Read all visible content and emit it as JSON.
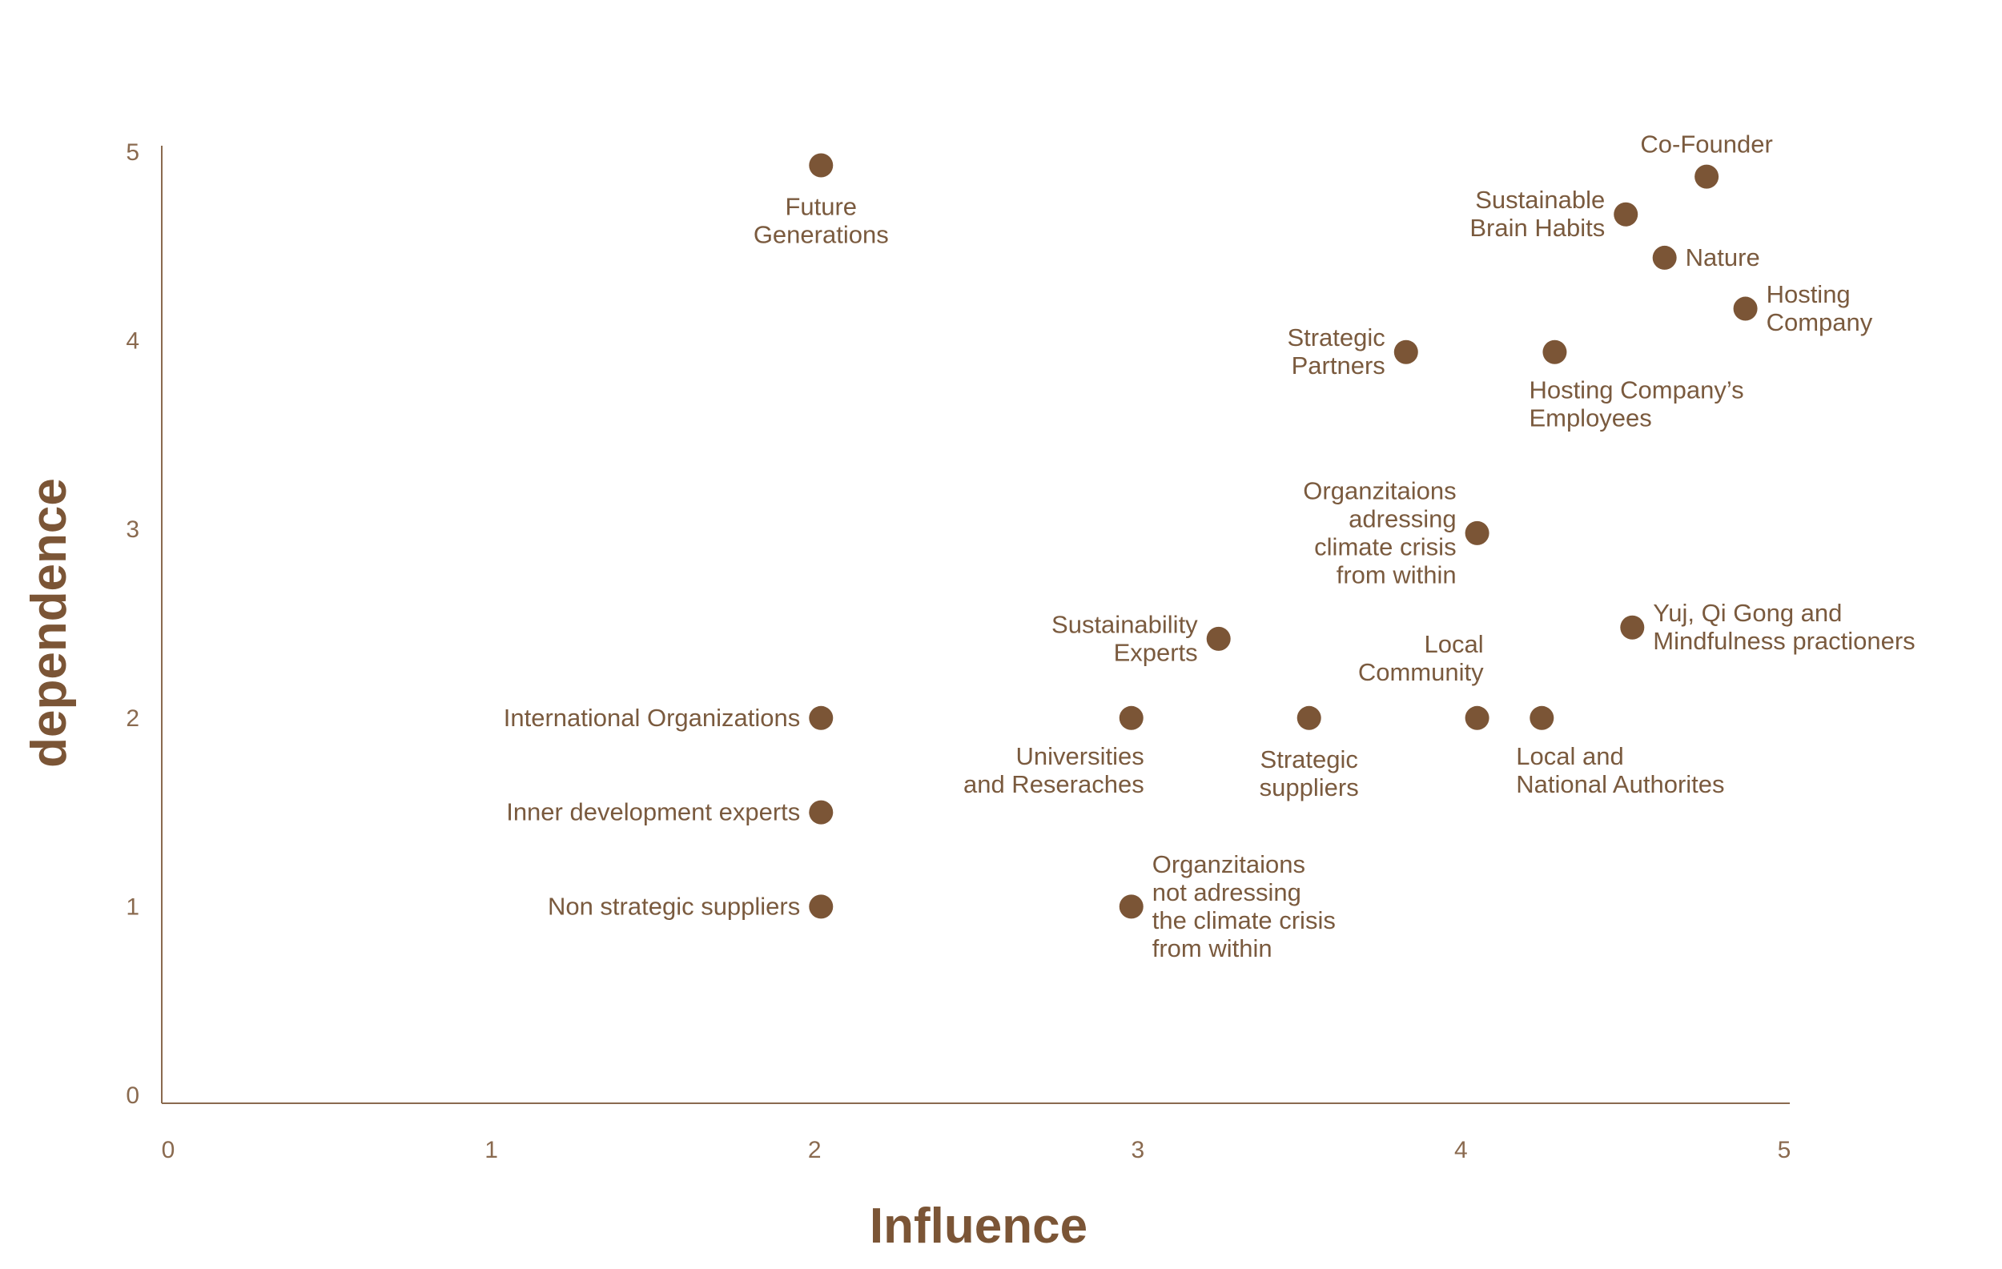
{
  "chart_data": {
    "type": "scatter",
    "title": "",
    "xlabel": "Influence",
    "ylabel": "dependence",
    "xlim": [
      0,
      5
    ],
    "ylim": [
      0,
      5
    ],
    "xticks": [
      "0",
      "1",
      "2",
      "3",
      "4",
      "5"
    ],
    "yticks": [
      "0",
      "1",
      "2",
      "3",
      "4",
      "5"
    ],
    "grid": false,
    "point_color": "#7b5536",
    "points": [
      {
        "x": 2.02,
        "y": 4.93,
        "label": [
          "Future",
          "Generations"
        ],
        "anchor": "middle",
        "pos": "below"
      },
      {
        "x": 4.76,
        "y": 4.87,
        "label": [
          "Co-Founder"
        ],
        "anchor": "middle",
        "pos": "above"
      },
      {
        "x": 4.51,
        "y": 4.67,
        "label": [
          "Sustainable",
          "Brain Habits"
        ],
        "anchor": "end",
        "pos": "left"
      },
      {
        "x": 4.63,
        "y": 4.44,
        "label": [
          "Nature"
        ],
        "anchor": "start",
        "pos": "right"
      },
      {
        "x": 4.88,
        "y": 4.17,
        "label": [
          "Hosting",
          "Company"
        ],
        "anchor": "start",
        "pos": "right"
      },
      {
        "x": 3.83,
        "y": 3.94,
        "label": [
          "Strategic",
          "Partners"
        ],
        "anchor": "end",
        "pos": "left"
      },
      {
        "x": 4.29,
        "y": 3.94,
        "label": [
          "Hosting Company’s",
          "Employees"
        ],
        "anchor": "start",
        "pos": "below-right"
      },
      {
        "x": 4.05,
        "y": 2.98,
        "label": [
          "Organzitaions",
          "adressing",
          "climate crisis",
          "from within"
        ],
        "anchor": "end",
        "pos": "left"
      },
      {
        "x": 4.53,
        "y": 2.48,
        "label": [
          "Yuj, Qi Gong and",
          "Mindfulness practioners"
        ],
        "anchor": "start",
        "pos": "right"
      },
      {
        "x": 3.25,
        "y": 2.42,
        "label": [
          "Sustainability",
          "Experts"
        ],
        "anchor": "end",
        "pos": "left"
      },
      {
        "x": 2.02,
        "y": 2.0,
        "label": [
          "International Organizations"
        ],
        "anchor": "end",
        "pos": "left"
      },
      {
        "x": 2.98,
        "y": 2.0,
        "label": [
          "Universities",
          "and Reseraches"
        ],
        "anchor": "end",
        "pos": "below-left"
      },
      {
        "x": 3.53,
        "y": 2.0,
        "label": [
          "Strategic",
          "suppliers"
        ],
        "anchor": "middle",
        "pos": "below"
      },
      {
        "x": 4.05,
        "y": 2.0,
        "label": [
          "Local",
          "Community"
        ],
        "anchor": "end",
        "pos": "above-left"
      },
      {
        "x": 4.25,
        "y": 2.0,
        "label": [
          "Local and",
          "National Authorites"
        ],
        "anchor": "start",
        "pos": "below-right"
      },
      {
        "x": 2.02,
        "y": 1.5,
        "label": [
          "Inner development experts"
        ],
        "anchor": "end",
        "pos": "left"
      },
      {
        "x": 2.02,
        "y": 1.0,
        "label": [
          "Non strategic suppliers"
        ],
        "anchor": "end",
        "pos": "left"
      },
      {
        "x": 2.98,
        "y": 1.0,
        "label": [
          "Organzitaions",
          "not adressing",
          "the climate crisis",
          "from within"
        ],
        "anchor": "start",
        "pos": "right"
      }
    ]
  }
}
